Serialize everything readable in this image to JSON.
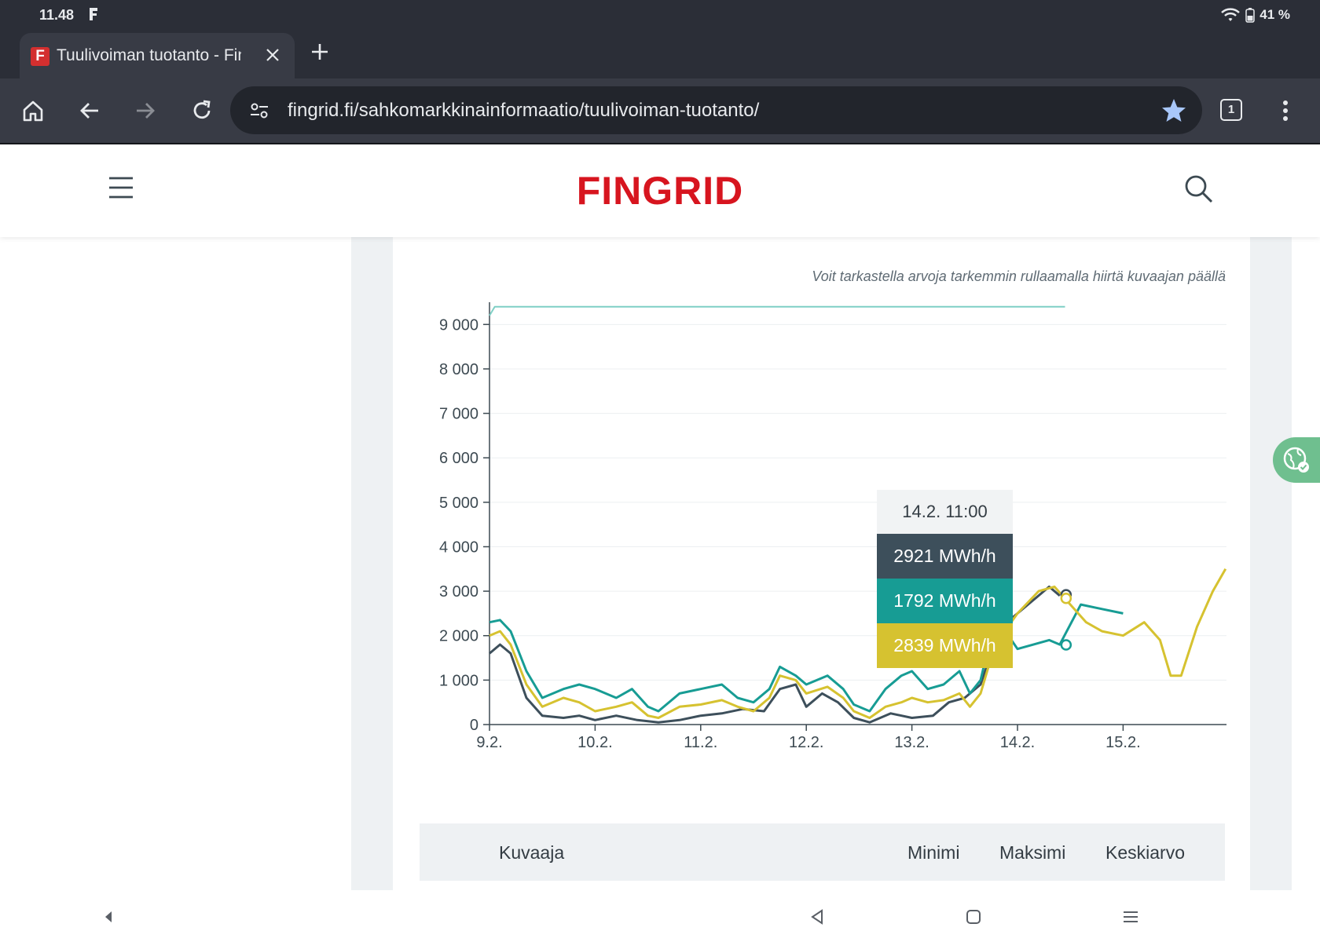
{
  "status": {
    "time": "11.48",
    "battery": "41 %"
  },
  "tab": {
    "title": "Tuulivoiman tuotanto - Fingrid"
  },
  "omnibox": {
    "url": "fingrid.fi/sahkomarkkinainformaatio/tuulivoiman-tuotanto/",
    "tab_count": "1"
  },
  "site": {
    "logo": "FINGRID"
  },
  "chart_hint": "Voit tarkastella arvoja tarkemmin rullaamalla hiirtä kuvaajan päällä",
  "tooltip": {
    "date": "14.2. 11:00",
    "values": [
      "2921 MWh/h",
      "1792 MWh/h",
      "2839 MWh/h"
    ]
  },
  "table": {
    "headers": [
      "Kuvaaja",
      "Minimi",
      "Maksimi",
      "Keskiarvo"
    ]
  },
  "colors": {
    "dark": "#3d4f5b",
    "teal": "#179c94",
    "yellow": "#d6c230",
    "capacity": "#7fcfc5",
    "brand": "#d7151f"
  },
  "chart_data": {
    "type": "line",
    "ylim": [
      0,
      9500
    ],
    "yticks": [
      "0",
      "1 000",
      "2 000",
      "3 000",
      "4 000",
      "5 000",
      "6 000",
      "7 000",
      "8 000",
      "9 000"
    ],
    "xticks": [
      "9.2.",
      "10.2.",
      "11.2.",
      "12.2.",
      "13.2.",
      "14.2.",
      "15.2."
    ],
    "xlim_days": [
      9,
      16
    ],
    "series": [
      {
        "color": "#7fcfc5",
        "points": [
          [
            9.0,
            9200
          ],
          [
            9.05,
            9400
          ],
          [
            14.45,
            9400
          ]
        ]
      },
      {
        "color": "#3d4f5b",
        "points": [
          [
            9.0,
            1600
          ],
          [
            9.1,
            1800
          ],
          [
            9.2,
            1600
          ],
          [
            9.35,
            600
          ],
          [
            9.5,
            200
          ],
          [
            9.7,
            150
          ],
          [
            9.85,
            200
          ],
          [
            10.0,
            100
          ],
          [
            10.2,
            200
          ],
          [
            10.4,
            100
          ],
          [
            10.6,
            50
          ],
          [
            10.8,
            100
          ],
          [
            11.0,
            200
          ],
          [
            11.2,
            250
          ],
          [
            11.4,
            350
          ],
          [
            11.6,
            300
          ],
          [
            11.75,
            800
          ],
          [
            11.9,
            900
          ],
          [
            12.0,
            400
          ],
          [
            12.15,
            700
          ],
          [
            12.3,
            500
          ],
          [
            12.45,
            150
          ],
          [
            12.6,
            50
          ],
          [
            12.8,
            250
          ],
          [
            13.0,
            150
          ],
          [
            13.2,
            200
          ],
          [
            13.35,
            500
          ],
          [
            13.5,
            600
          ],
          [
            13.65,
            900
          ],
          [
            13.75,
            1600
          ],
          [
            13.85,
            2200
          ],
          [
            14.0,
            2500
          ],
          [
            14.15,
            2800
          ],
          [
            14.3,
            3100
          ],
          [
            14.4,
            2900
          ]
        ]
      },
      {
        "color": "#179c94",
        "points": [
          [
            9.0,
            2300
          ],
          [
            9.1,
            2350
          ],
          [
            9.2,
            2100
          ],
          [
            9.35,
            1200
          ],
          [
            9.5,
            600
          ],
          [
            9.7,
            800
          ],
          [
            9.85,
            900
          ],
          [
            10.0,
            800
          ],
          [
            10.2,
            600
          ],
          [
            10.35,
            800
          ],
          [
            10.5,
            400
          ],
          [
            10.6,
            300
          ],
          [
            10.8,
            700
          ],
          [
            11.0,
            800
          ],
          [
            11.2,
            900
          ],
          [
            11.35,
            600
          ],
          [
            11.5,
            500
          ],
          [
            11.65,
            800
          ],
          [
            11.75,
            1300
          ],
          [
            11.9,
            1100
          ],
          [
            12.0,
            900
          ],
          [
            12.2,
            1100
          ],
          [
            12.35,
            800
          ],
          [
            12.45,
            450
          ],
          [
            12.6,
            300
          ],
          [
            12.75,
            800
          ],
          [
            12.9,
            1100
          ],
          [
            13.0,
            1200
          ],
          [
            13.15,
            800
          ],
          [
            13.3,
            900
          ],
          [
            13.45,
            1200
          ],
          [
            13.55,
            700
          ],
          [
            13.65,
            1000
          ],
          [
            13.75,
            2000
          ],
          [
            13.8,
            2400
          ],
          [
            14.0,
            1700
          ],
          [
            14.15,
            1800
          ],
          [
            14.3,
            1900
          ],
          [
            14.4,
            1800
          ],
          [
            14.6,
            2700
          ],
          [
            14.8,
            2600
          ],
          [
            15.0,
            2500
          ]
        ]
      },
      {
        "color": "#d6c230",
        "points": [
          [
            9.0,
            2000
          ],
          [
            9.1,
            2100
          ],
          [
            9.2,
            1800
          ],
          [
            9.35,
            900
          ],
          [
            9.5,
            400
          ],
          [
            9.7,
            600
          ],
          [
            9.85,
            500
          ],
          [
            10.0,
            300
          ],
          [
            10.2,
            400
          ],
          [
            10.35,
            500
          ],
          [
            10.5,
            200
          ],
          [
            10.6,
            150
          ],
          [
            10.8,
            400
          ],
          [
            11.0,
            450
          ],
          [
            11.2,
            550
          ],
          [
            11.35,
            400
          ],
          [
            11.5,
            300
          ],
          [
            11.65,
            600
          ],
          [
            11.75,
            1100
          ],
          [
            11.9,
            1000
          ],
          [
            12.0,
            700
          ],
          [
            12.2,
            850
          ],
          [
            12.35,
            600
          ],
          [
            12.45,
            300
          ],
          [
            12.6,
            150
          ],
          [
            12.75,
            400
          ],
          [
            12.9,
            500
          ],
          [
            13.0,
            600
          ],
          [
            13.15,
            500
          ],
          [
            13.3,
            550
          ],
          [
            13.45,
            700
          ],
          [
            13.55,
            400
          ],
          [
            13.65,
            700
          ],
          [
            13.75,
            1500
          ],
          [
            13.85,
            2000
          ],
          [
            14.0,
            2500
          ],
          [
            14.2,
            3000
          ],
          [
            14.35,
            3100
          ],
          [
            14.5,
            2700
          ],
          [
            14.65,
            2300
          ],
          [
            14.8,
            2100
          ],
          [
            15.0,
            2000
          ],
          [
            15.2,
            2300
          ],
          [
            15.35,
            1900
          ],
          [
            15.45,
            1100
          ],
          [
            15.55,
            1100
          ],
          [
            15.7,
            2200
          ],
          [
            15.85,
            3000
          ],
          [
            15.97,
            3500
          ]
        ]
      }
    ]
  }
}
